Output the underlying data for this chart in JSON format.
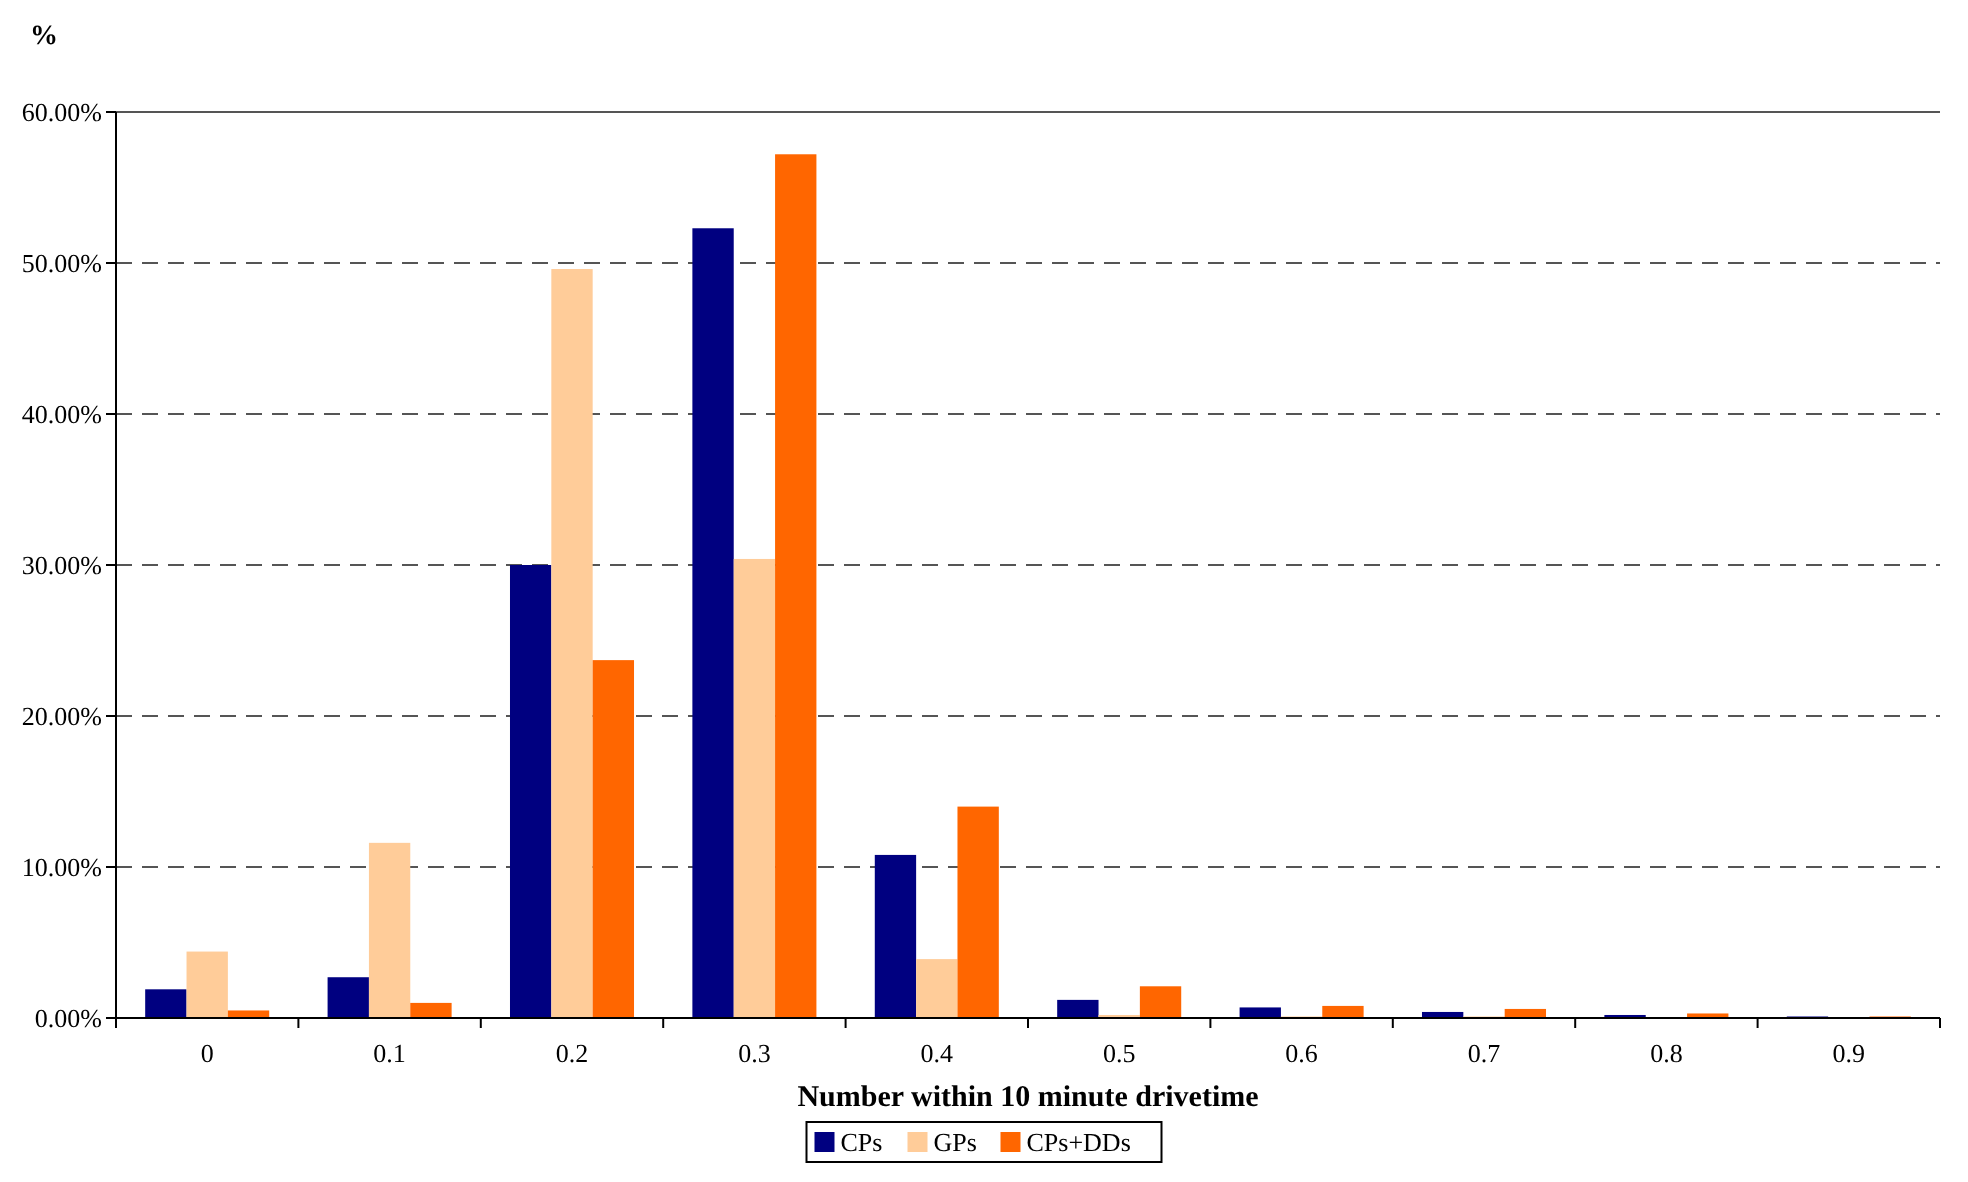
{
  "chart_data": {
    "type": "bar",
    "xlabel": "Number within 10 minute drivetime",
    "ylabel": "%",
    "categories": [
      "0",
      "0.1",
      "0.2",
      "0.3",
      "0.4",
      "0.5",
      "0.6",
      "0.7",
      "0.8",
      "0.9"
    ],
    "series": [
      {
        "name": "CPs",
        "color": "#000080",
        "values": [
          1.9,
          2.7,
          30.0,
          52.3,
          10.8,
          1.2,
          0.7,
          0.4,
          0.2,
          0.1
        ]
      },
      {
        "name": "GPs",
        "color": "#ffcc99",
        "values": [
          4.4,
          11.6,
          49.6,
          30.4,
          3.9,
          0.2,
          0.1,
          0.1,
          0,
          0
        ]
      },
      {
        "name": "CPs+DDs",
        "color": "#ff6600",
        "values": [
          0.5,
          1.0,
          23.7,
          57.2,
          14.0,
          2.1,
          0.8,
          0.6,
          0.3,
          0.1
        ]
      }
    ],
    "ylim": [
      0,
      60
    ],
    "yticks": [
      {
        "value": 0,
        "label": "0.00%"
      },
      {
        "value": 10,
        "label": "10.00%"
      },
      {
        "value": 20,
        "label": "20.00%"
      },
      {
        "value": 30,
        "label": "30.00%"
      },
      {
        "value": 40,
        "label": "40.00%"
      },
      {
        "value": 50,
        "label": "50.00%"
      },
      {
        "value": 60,
        "label": "60.00%"
      }
    ],
    "grid": "y",
    "legend": "bottom"
  }
}
